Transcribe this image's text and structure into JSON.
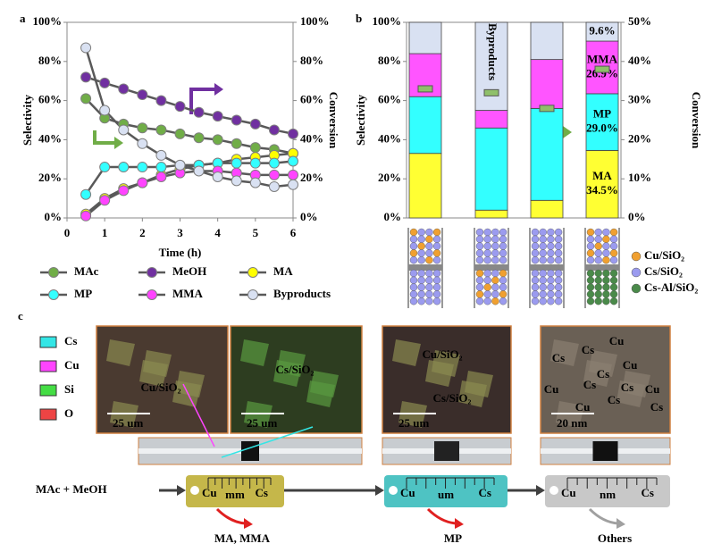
{
  "chart_data": [
    {
      "type": "line",
      "x": [
        0.5,
        1,
        1.5,
        2,
        2.5,
        3,
        3.5,
        4,
        4.5,
        5,
        5.5,
        6
      ],
      "series": [
        {
          "name": "MAc",
          "color": "#70ad47",
          "axis": "y2",
          "values": [
            61,
            51,
            48,
            46,
            45,
            43,
            41,
            40,
            38,
            36,
            35,
            33
          ]
        },
        {
          "name": "MeOH",
          "color": "#7030a0",
          "axis": "y2",
          "values": [
            72,
            69,
            66,
            63,
            60,
            57,
            54,
            52,
            50,
            48,
            45,
            43
          ]
        },
        {
          "name": "MA",
          "color": "#ffff00",
          "values": [
            2,
            10,
            15,
            18,
            22,
            25,
            27,
            28,
            30,
            31,
            32,
            33
          ]
        },
        {
          "name": "MP",
          "color": "#33ffff",
          "values": [
            12,
            26,
            26,
            26,
            26,
            27,
            27,
            28,
            28,
            28,
            28,
            29
          ]
        },
        {
          "name": "MMA",
          "color": "#ff44ff",
          "values": [
            1,
            9,
            14,
            18,
            21,
            23,
            24,
            24,
            23,
            22,
            22,
            22
          ]
        },
        {
          "name": "Byproducts",
          "color": "#d9e1f2",
          "values": [
            87,
            55,
            45,
            38,
            32,
            27,
            24,
            21,
            19,
            18,
            16,
            17
          ]
        }
      ],
      "xlabel": "Time (h)",
      "ylabel": "Selectivity",
      "y2label": "Conversion",
      "xlim": [
        0,
        6
      ],
      "xticks": [
        0,
        1,
        2,
        3,
        4,
        5,
        6
      ],
      "ylim": [
        0,
        100
      ],
      "yticks": [
        {
          "value": 0,
          "label": "0%"
        },
        {
          "value": 20,
          "label": "20%"
        },
        {
          "value": 40,
          "label": "40%"
        },
        {
          "value": 60,
          "label": "60%"
        },
        {
          "value": 80,
          "label": "80%"
        },
        {
          "value": 100,
          "label": "100%"
        }
      ],
      "y2lim": [
        0,
        100
      ],
      "y2ticks": [
        {
          "value": 0,
          "label": "0%"
        },
        {
          "value": 20,
          "label": "20%"
        },
        {
          "value": 40,
          "label": "40%"
        },
        {
          "value": 60,
          "label": "60%"
        },
        {
          "value": 80,
          "label": "80%"
        },
        {
          "value": 100,
          "label": "100%"
        }
      ]
    },
    {
      "type": "stacked-bar",
      "categories": [
        null,
        null,
        null,
        null
      ],
      "series": [
        {
          "name": "MA",
          "color": "#ffff33",
          "values": [
            33,
            4,
            9,
            34.5
          ],
          "value_labels": [
            null,
            null,
            null,
            "34.5%"
          ]
        },
        {
          "name": "MP",
          "color": "#33ffff",
          "values": [
            29,
            42,
            47,
            29.0
          ],
          "value_labels": [
            null,
            null,
            null,
            "29.0%"
          ]
        },
        {
          "name": "MMA",
          "color": "#ff55ff",
          "values": [
            22,
            9,
            25,
            26.9
          ],
          "value_labels": [
            null,
            null,
            null,
            "26.9%"
          ]
        },
        {
          "name": "Byproducts",
          "color": "#d9e1f2",
          "values": [
            16,
            45,
            19,
            9.6
          ],
          "value_labels": [
            null,
            null,
            null,
            "9.6%"
          ]
        }
      ],
      "conversion": {
        "axis": "y2",
        "color": "#8fc06a",
        "values": [
          33,
          32,
          28,
          38
        ]
      },
      "ylabel": "Selectivity",
      "y2label": "Conversion",
      "ylim": [
        0,
        100
      ],
      "yticks": [
        {
          "value": 0,
          "label": "0%"
        },
        {
          "value": 20,
          "label": "20%"
        },
        {
          "value": 40,
          "label": "40%"
        },
        {
          "value": 60,
          "label": "60%"
        },
        {
          "value": 80,
          "label": "80%"
        },
        {
          "value": 100,
          "label": "100%"
        }
      ],
      "y2lim": [
        0,
        50
      ],
      "y2ticks": [
        {
          "value": 0,
          "label": "0%"
        },
        {
          "value": 10,
          "label": "10%"
        },
        {
          "value": 20,
          "label": "20%"
        },
        {
          "value": 30,
          "label": "30%"
        },
        {
          "value": 40,
          "label": "40%"
        },
        {
          "value": 50,
          "label": "50%"
        }
      ]
    }
  ],
  "panel_labels": [
    "a",
    "b",
    "c"
  ],
  "catalyst_legend": [
    {
      "name": "Cu/SiO₂",
      "color": "#f0a030"
    },
    {
      "name": "Cs/SiO₂",
      "color": "#9b9bef"
    },
    {
      "name": "Cs-Al/SiO₂",
      "color": "#4a8a4a"
    }
  ],
  "panel_c": {
    "element_legend": [
      {
        "name": "Cs",
        "color": "#33e6e6"
      },
      {
        "name": "Cu",
        "color": "#ff44ff"
      },
      {
        "name": "Si",
        "color": "#44dd44"
      },
      {
        "name": "O",
        "color": "#ee4444"
      }
    ],
    "images": [
      {
        "labels": [
          "Cu/SiO₂"
        ],
        "scale": "25 um"
      },
      {
        "labels": [
          "Cs/SiO₂"
        ],
        "scale": "25 um"
      },
      {
        "labels": [
          "Cu/SiO₂",
          "Cs/SiO₂"
        ],
        "scale": "25 um"
      },
      {
        "labels": [
          "Cs",
          "Cu",
          "Cs",
          "Cs",
          "Cu",
          "Cu",
          "Cs",
          "Cs",
          "Cu",
          "Cu",
          "Cs",
          "Cs"
        ],
        "scale": "20 nm"
      }
    ],
    "reactants": "MAc + MeOH",
    "reactors": [
      {
        "left": "Cu",
        "size": "mm",
        "right": "Cs",
        "product": "MA, MMA"
      },
      {
        "left": "Cu",
        "size": "um",
        "right": "Cs",
        "product": "MP"
      },
      {
        "left": "Cu",
        "size": "nm",
        "right": "Cs",
        "product": "Others"
      }
    ]
  }
}
